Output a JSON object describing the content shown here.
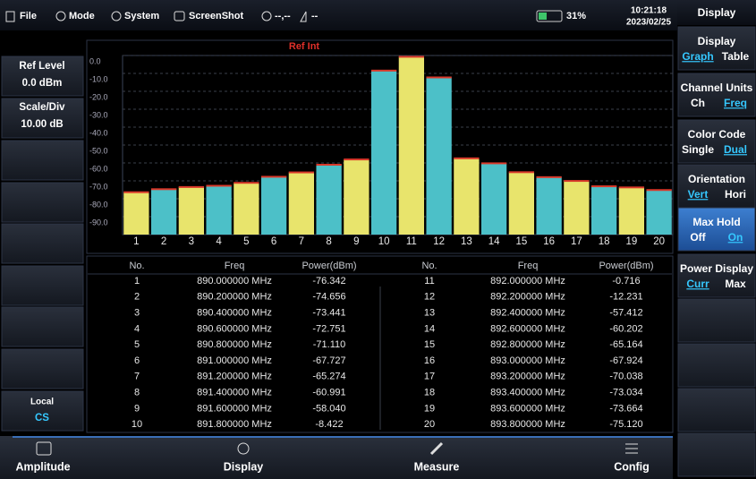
{
  "status_bar": {
    "menu": [
      "File",
      "Mode",
      "System",
      "ScreenShot"
    ],
    "gps": "--,--",
    "signal": "--",
    "battery": "31%",
    "time": "10:21:18",
    "date": "2023/02/25"
  },
  "left_panel": {
    "ref_level": {
      "label": "Ref Level",
      "value": "0.0 dBm"
    },
    "scale": {
      "label": "Scale/Div",
      "value": "10.00 dB"
    },
    "local": {
      "label": "Local",
      "value": "CS"
    }
  },
  "chart_data": {
    "type": "bar",
    "annotation": "Ref Int",
    "categories": [
      1,
      2,
      3,
      4,
      5,
      6,
      7,
      8,
      9,
      10,
      11,
      12,
      13,
      14,
      15,
      16,
      17,
      18,
      19,
      20
    ],
    "values": [
      -76.342,
      -74.656,
      -73.441,
      -72.751,
      -71.11,
      -67.727,
      -65.274,
      -60.991,
      -58.04,
      -8.422,
      -0.716,
      -12.231,
      -57.412,
      -60.202,
      -65.164,
      -67.924,
      -70.038,
      -73.034,
      -73.664,
      -75.12
    ],
    "colors": [
      "#e8e46c",
      "#4cc0c8"
    ],
    "cap_color": "#d9382a",
    "ylim": [
      -100,
      0
    ],
    "yticks": [
      {
        "value": 0,
        "label": "0.0"
      },
      {
        "value": -10,
        "label": "-10.0"
      },
      {
        "value": -20,
        "label": "-20.0"
      },
      {
        "value": -30,
        "label": "-30.0"
      },
      {
        "value": -40,
        "label": "-40.0"
      },
      {
        "value": -50,
        "label": "-50.0"
      },
      {
        "value": -60,
        "label": "-60.0"
      },
      {
        "value": -70,
        "label": "-70.0"
      },
      {
        "value": -80,
        "label": "-80.0"
      },
      {
        "value": -90,
        "label": "-90.0"
      }
    ],
    "grid": true
  },
  "table": {
    "columns": [
      "No.",
      "Freq",
      "Power(dBm)"
    ],
    "rows": [
      [
        "1",
        "890.000000 MHz",
        "-76.342"
      ],
      [
        "2",
        "890.200000 MHz",
        "-74.656"
      ],
      [
        "3",
        "890.400000 MHz",
        "-73.441"
      ],
      [
        "4",
        "890.600000 MHz",
        "-72.751"
      ],
      [
        "5",
        "890.800000 MHz",
        "-71.110"
      ],
      [
        "6",
        "891.000000 MHz",
        "-67.727"
      ],
      [
        "7",
        "891.200000 MHz",
        "-65.274"
      ],
      [
        "8",
        "891.400000 MHz",
        "-60.991"
      ],
      [
        "9",
        "891.600000 MHz",
        "-58.040"
      ],
      [
        "10",
        "891.800000 MHz",
        "-8.422"
      ],
      [
        "11",
        "892.000000 MHz",
        "-0.716"
      ],
      [
        "12",
        "892.200000 MHz",
        "-12.231"
      ],
      [
        "13",
        "892.400000 MHz",
        "-57.412"
      ],
      [
        "14",
        "892.600000 MHz",
        "-60.202"
      ],
      [
        "15",
        "892.800000 MHz",
        "-65.164"
      ],
      [
        "16",
        "893.000000 MHz",
        "-67.924"
      ],
      [
        "17",
        "893.200000 MHz",
        "-70.038"
      ],
      [
        "18",
        "893.400000 MHz",
        "-73.034"
      ],
      [
        "19",
        "893.600000 MHz",
        "-73.664"
      ],
      [
        "20",
        "893.800000 MHz",
        "-75.120"
      ]
    ]
  },
  "softkeys": {
    "title": "Display",
    "items": [
      {
        "label": "Display",
        "options": [
          "Graph",
          "Table"
        ],
        "selected": 0
      },
      {
        "label": "Channel Units",
        "options": [
          "Ch",
          "Freq"
        ],
        "selected": 1
      },
      {
        "label": "Color Code",
        "options": [
          "Single",
          "Dual"
        ],
        "selected": 1
      },
      {
        "label": "Orientation",
        "options": [
          "Vert",
          "Hori"
        ],
        "selected": 0
      },
      {
        "label": "Max Hold",
        "options": [
          "Off",
          "On"
        ],
        "selected": 1,
        "active": true
      },
      {
        "label": "Power Display",
        "options": [
          "Curr",
          "Max"
        ],
        "selected": 0
      }
    ]
  },
  "bottom_menu": [
    "Amplitude",
    "Display",
    "Measure",
    "Config"
  ]
}
